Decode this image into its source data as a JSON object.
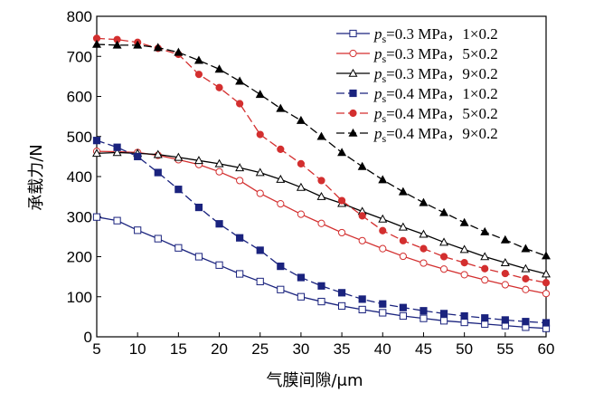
{
  "chart_data": {
    "type": "line",
    "xlabel": "气膜间隙/μm",
    "ylabel": "承载力/N",
    "xlim": [
      5,
      60
    ],
    "ylim": [
      0,
      800
    ],
    "xticks": [
      5,
      10,
      15,
      20,
      25,
      30,
      35,
      40,
      45,
      50,
      55,
      60
    ],
    "yticks": [
      0,
      100,
      200,
      300,
      400,
      500,
      600,
      700,
      800
    ],
    "grid": false,
    "legend_position": "top-right",
    "series": [
      {
        "name": "ps=0.3 MPa，1×0.2",
        "legend_prefix": "p",
        "legend_sub": "s",
        "legend_rest": "=0.3 MPa，1×0.2",
        "color": "#1a237e",
        "dash": "solid",
        "marker": "square-open",
        "x": [
          5,
          7.5,
          10,
          12.5,
          15,
          17.5,
          20,
          22.5,
          25,
          27.5,
          30,
          32.5,
          35,
          37.5,
          40,
          42.5,
          45,
          47.5,
          50,
          52.5,
          55,
          57.5,
          60
        ],
        "y": [
          299,
          290,
          266,
          245,
          222,
          200,
          179,
          157,
          138,
          118,
          100,
          88,
          77,
          68,
          60,
          52,
          46,
          40,
          36,
          32,
          28,
          24,
          21
        ]
      },
      {
        "name": "ps=0.3 MPa，5×0.2",
        "legend_prefix": "p",
        "legend_sub": "s",
        "legend_rest": "=0.3 MPa，5×0.2",
        "color": "#d32f2f",
        "dash": "solid",
        "marker": "circle-open",
        "x": [
          5,
          7.5,
          10,
          12.5,
          15,
          17.5,
          20,
          22.5,
          25,
          27.5,
          30,
          32.5,
          35,
          37.5,
          40,
          42.5,
          45,
          47.5,
          50,
          52.5,
          55,
          57.5,
          60
        ],
        "y": [
          463,
          462,
          460,
          453,
          442,
          430,
          412,
          390,
          358,
          332,
          306,
          283,
          260,
          240,
          220,
          201,
          184,
          169,
          155,
          142,
          130,
          118,
          108
        ]
      },
      {
        "name": "ps=0.3 MPa，9×0.2",
        "legend_prefix": "p",
        "legend_sub": "s",
        "legend_rest": "=0.3 MPa，9×0.2",
        "color": "#000000",
        "dash": "solid",
        "marker": "triangle-open",
        "x": [
          5,
          7.5,
          10,
          12.5,
          15,
          17.5,
          20,
          22.5,
          25,
          27.5,
          30,
          32.5,
          35,
          37.5,
          40,
          42.5,
          45,
          47.5,
          50,
          52.5,
          55,
          57.5,
          60
        ],
        "y": [
          458,
          460,
          458,
          455,
          448,
          440,
          432,
          422,
          410,
          393,
          373,
          350,
          333,
          313,
          294,
          274,
          256,
          236,
          218,
          200,
          185,
          170,
          157
        ]
      },
      {
        "name": "ps=0.4 MPa，1×0.2",
        "legend_prefix": "p",
        "legend_sub": "s",
        "legend_rest": "=0.4 MPa，1×0.2",
        "color": "#1a237e",
        "dash": "dashed",
        "marker": "square-filled",
        "x": [
          5,
          7.5,
          10,
          12.5,
          15,
          17.5,
          20,
          22.5,
          25,
          27.5,
          30,
          32.5,
          35,
          37.5,
          40,
          42.5,
          45,
          47.5,
          50,
          52.5,
          55,
          57.5,
          60
        ],
        "y": [
          490,
          473,
          450,
          410,
          368,
          323,
          282,
          247,
          216,
          176,
          148,
          127,
          110,
          94,
          82,
          73,
          65,
          58,
          52,
          47,
          42,
          38,
          35
        ]
      },
      {
        "name": "ps=0.4 MPa，5×0.2",
        "legend_prefix": "p",
        "legend_sub": "s",
        "legend_rest": "=0.4 MPa，5×0.2",
        "color": "#d32f2f",
        "dash": "dashed",
        "marker": "circle-filled",
        "x": [
          5,
          7.5,
          10,
          12.5,
          15,
          17.5,
          20,
          22.5,
          25,
          27.5,
          30,
          32.5,
          35,
          37.5,
          40,
          42.5,
          45,
          47.5,
          50,
          52.5,
          55,
          57.5,
          60
        ],
        "y": [
          745,
          742,
          735,
          720,
          705,
          655,
          622,
          582,
          505,
          468,
          432,
          390,
          340,
          302,
          265,
          240,
          220,
          200,
          185,
          170,
          158,
          145,
          135
        ]
      },
      {
        "name": "ps=0.4 MPa，9×0.2",
        "legend_prefix": "p",
        "legend_sub": "s",
        "legend_rest": "=0.4 MPa，9×0.2",
        "color": "#000000",
        "dash": "dashed",
        "marker": "triangle-filled",
        "x": [
          5,
          7.5,
          10,
          12.5,
          15,
          17.5,
          20,
          22.5,
          25,
          27.5,
          30,
          32.5,
          35,
          37.5,
          40,
          42.5,
          45,
          47.5,
          50,
          52.5,
          55,
          57.5,
          60
        ],
        "y": [
          730,
          728,
          728,
          722,
          710,
          690,
          668,
          638,
          605,
          570,
          540,
          500,
          460,
          425,
          392,
          362,
          335,
          310,
          285,
          262,
          242,
          220,
          202
        ]
      }
    ]
  }
}
